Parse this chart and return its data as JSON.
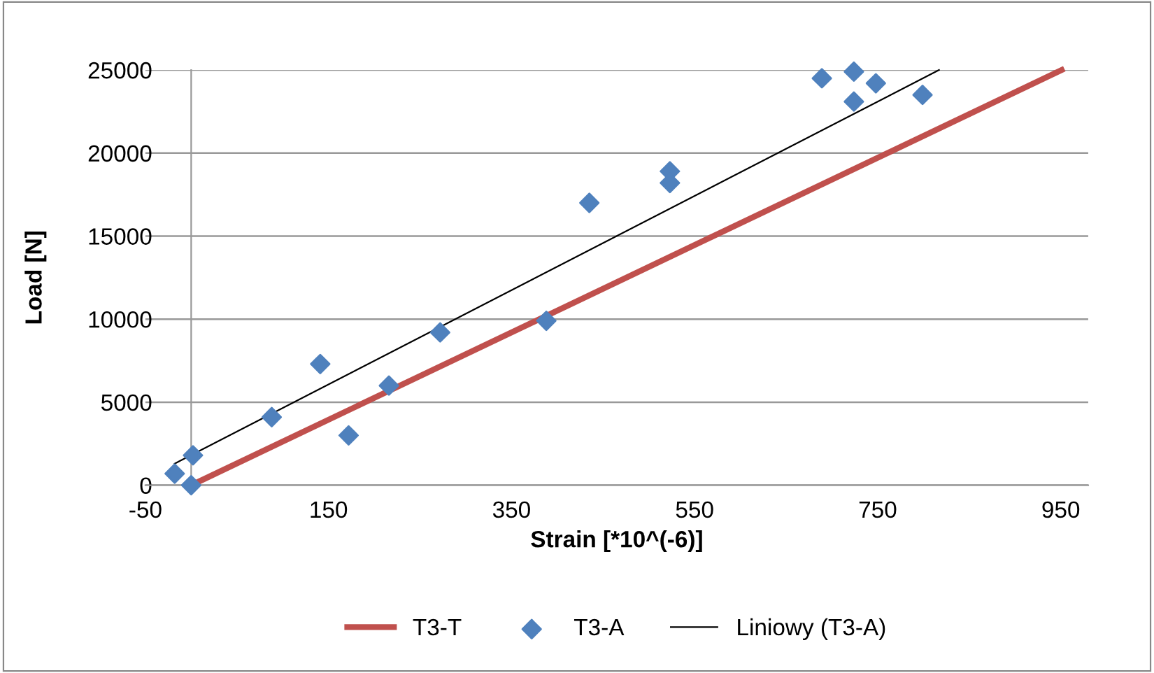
{
  "chart_data": {
    "type": "scatter",
    "xlabel": "Strain [*10^(-6)]",
    "ylabel": "Load [N]",
    "series": [
      {
        "name": "T3-T",
        "type": "line",
        "color": "#c0504d",
        "marker": "none",
        "line_style": "solid",
        "x": [
          0,
          951
        ],
        "values": [
          0,
          25000
        ]
      },
      {
        "name": "T3-A",
        "color": "#4f81bd",
        "marker": "diamond",
        "x": [
          -18,
          0,
          2,
          88,
          141,
          172,
          216,
          272,
          388,
          435,
          523,
          523,
          689,
          724,
          748,
          724,
          799
        ],
        "values": [
          700,
          0,
          1800,
          4100,
          7300,
          3000,
          6000,
          9200,
          9900,
          17000,
          18900,
          18200,
          24500,
          24900,
          24200,
          23100,
          23500
        ]
      },
      {
        "name": "Liniowy (T3-A)",
        "type": "line",
        "color": "#000000",
        "marker": "none",
        "line_style": "solid",
        "x": [
          -18,
          817
        ],
        "values": [
          1300,
          25000
        ]
      }
    ],
    "xlim": [
      -50,
      980
    ],
    "ylim": [
      0,
      25000
    ],
    "xticks": [
      -50,
      150,
      350,
      550,
      750,
      950
    ],
    "yticks": [
      0,
      5000,
      10000,
      15000,
      20000,
      25000
    ],
    "grid": "y",
    "legend": "bottom"
  }
}
